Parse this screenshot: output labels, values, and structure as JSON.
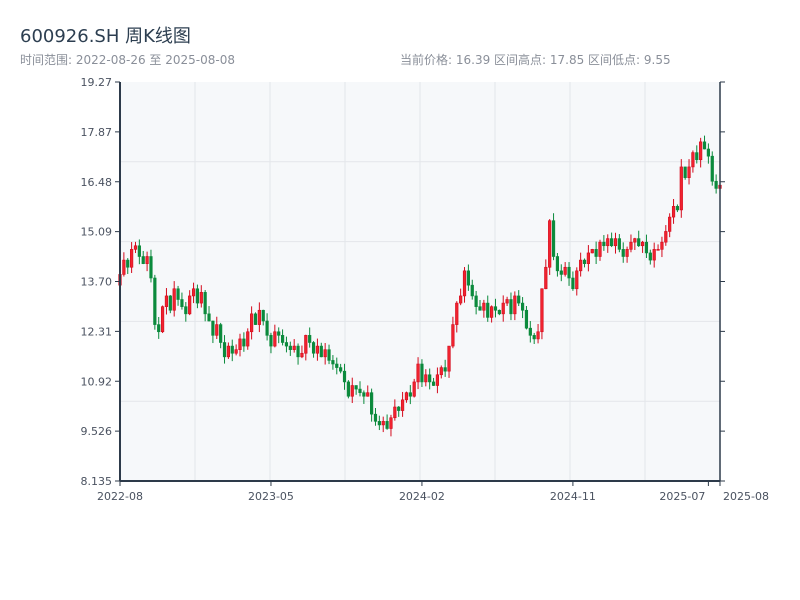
{
  "header": {
    "title": "600926.SH 周K线图",
    "range": "时间范围: 2022-08-26 至 2025-08-08",
    "stats": "当前价格: 16.39  区间高点: 17.85  区间低点: 9.55"
  },
  "colors": {
    "up": "#d40a1c",
    "down": "#0b8a3c",
    "plot_bg": "#f6f8fa",
    "axis": "#2d3a4a",
    "grid": "#e3e6ea"
  },
  "chart_data": {
    "type": "candlestick",
    "title": "600926.SH 周K线图",
    "ylim": [
      8.135,
      19.27
    ],
    "yticks": [
      "8.135",
      "9.526",
      "10.92",
      "12.31",
      "13.70",
      "15.09",
      "16.48",
      "17.87",
      "19.27"
    ],
    "xticks": [
      {
        "label": "2022-08",
        "week": 0
      },
      {
        "label": "2023-05",
        "week": 39
      },
      {
        "label": "2024-02",
        "week": 78
      },
      {
        "label": "2024-11",
        "week": 117
      },
      {
        "label": "2025-07",
        "week": 152
      },
      {
        "label": "2025-08",
        "week": 155
      }
    ],
    "first_open": 13.6,
    "close": [
      13.9,
      14.3,
      14.1,
      14.6,
      14.7,
      14.4,
      14.2,
      14.4,
      13.8,
      12.5,
      12.3,
      13.0,
      13.3,
      12.9,
      13.5,
      13.2,
      13.0,
      12.8,
      13.3,
      13.5,
      13.1,
      13.4,
      12.8,
      12.6,
      12.2,
      12.5,
      12.0,
      11.6,
      11.9,
      11.7,
      11.8,
      12.1,
      11.9,
      12.3,
      12.8,
      12.5,
      12.9,
      12.6,
      12.2,
      11.9,
      12.3,
      12.2,
      12.0,
      11.9,
      11.8,
      11.9,
      11.6,
      11.7,
      12.2,
      12.0,
      11.7,
      11.9,
      11.6,
      11.8,
      11.5,
      11.4,
      11.3,
      11.2,
      10.9,
      10.5,
      10.8,
      10.7,
      10.6,
      10.5,
      10.6,
      10.0,
      9.8,
      9.7,
      9.8,
      9.6,
      9.9,
      10.2,
      10.1,
      10.4,
      10.6,
      10.5,
      10.9,
      11.4,
      10.9,
      11.1,
      10.9,
      10.8,
      11.1,
      11.3,
      11.2,
      11.9,
      12.5,
      13.1,
      13.3,
      14.0,
      13.6,
      13.3,
      13.0,
      12.9,
      13.1,
      12.7,
      13.0,
      12.9,
      12.8,
      13.1,
      13.2,
      12.8,
      13.3,
      13.1,
      12.9,
      12.4,
      12.2,
      12.1,
      12.3,
      13.5,
      14.1,
      15.4,
      14.4,
      14.0,
      13.9,
      14.1,
      13.8,
      13.5,
      14.0,
      14.3,
      14.2,
      14.5,
      14.6,
      14.4,
      14.8,
      14.7,
      14.9,
      14.7,
      14.9,
      14.6,
      14.4,
      14.6,
      14.8,
      14.9,
      14.7,
      14.8,
      14.5,
      14.3,
      14.6,
      14.6,
      14.8,
      15.1,
      15.5,
      15.8,
      15.7,
      16.9,
      16.6,
      16.9,
      17.3,
      17.1,
      17.6,
      17.4,
      17.2,
      16.5,
      16.3,
      16.39
    ]
  }
}
